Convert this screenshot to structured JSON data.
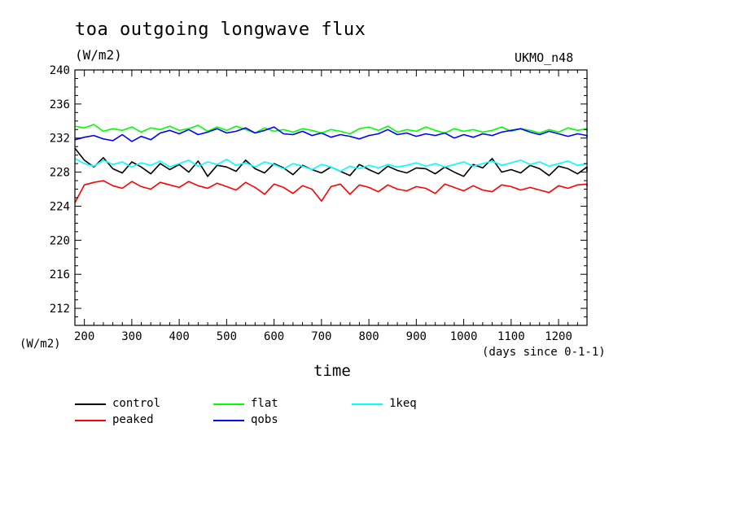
{
  "chart_data": {
    "type": "line",
    "title": "toa outgoing longwave flux",
    "units_label": "(W/m2)",
    "model_label": "UKMO_n48",
    "y_axis_units": "(W/m2)",
    "xlabel": "time",
    "x_units_note": "(days since 0-1-1)",
    "xlim": [
      180,
      1260
    ],
    "ylim": [
      210,
      240
    ],
    "x_ticks": [
      200,
      300,
      400,
      500,
      600,
      700,
      800,
      900,
      1000,
      1100,
      1200
    ],
    "y_ticks": [
      212,
      216,
      220,
      224,
      228,
      232,
      236,
      240
    ],
    "x_step": 20,
    "x_start": 180,
    "series": [
      {
        "name": "control",
        "color": "#000000",
        "values": [
          230.8,
          229.4,
          228.6,
          229.7,
          228.4,
          227.9,
          229.2,
          228.6,
          227.8,
          229.0,
          228.3,
          228.9,
          228.0,
          229.3,
          227.5,
          228.8,
          228.6,
          228.1,
          229.4,
          228.4,
          227.9,
          229.0,
          228.5,
          227.7,
          228.8,
          228.3,
          227.9,
          228.6,
          228.1,
          227.6,
          228.9,
          228.3,
          227.8,
          228.7,
          228.2,
          227.9,
          228.5,
          228.4,
          227.8,
          228.6,
          228.0,
          227.5,
          228.9,
          228.5,
          229.6,
          228.0,
          228.3,
          227.9,
          228.8,
          228.4,
          227.6,
          228.7,
          228.4,
          227.8,
          228.6,
          228.1
        ]
      },
      {
        "name": "peaked",
        "color": "#ff0000",
        "values": [
          224.4,
          226.5,
          226.8,
          227.0,
          226.4,
          226.1,
          226.9,
          226.3,
          226.0,
          226.8,
          226.5,
          226.2,
          226.9,
          226.4,
          226.1,
          226.7,
          226.3,
          225.9,
          226.8,
          226.2,
          225.4,
          226.6,
          226.2,
          225.5,
          226.4,
          226.0,
          224.6,
          226.3,
          226.6,
          225.4,
          226.5,
          226.2,
          225.7,
          226.5,
          226.0,
          225.8,
          226.3,
          226.1,
          225.5,
          226.6,
          226.2,
          225.8,
          226.4,
          225.9,
          225.7,
          226.5,
          226.3,
          225.9,
          226.2,
          225.9,
          225.6,
          226.4,
          226.1,
          226.5,
          226.6,
          226.3
        ]
      },
      {
        "name": "flat",
        "color": "#00ff00",
        "values": [
          233.4,
          233.2,
          233.6,
          232.8,
          233.1,
          232.9,
          233.3,
          232.7,
          233.2,
          233.0,
          233.4,
          232.9,
          233.1,
          233.5,
          232.8,
          233.3,
          232.9,
          233.4,
          233.0,
          232.6,
          233.2,
          232.8,
          233.0,
          232.7,
          233.1,
          232.9,
          232.6,
          233.0,
          232.8,
          232.5,
          233.1,
          233.3,
          232.9,
          233.4,
          232.7,
          233.0,
          232.8,
          233.3,
          232.9,
          232.6,
          233.1,
          232.8,
          233.0,
          232.7,
          232.9,
          233.3,
          232.8,
          233.1,
          232.9,
          232.6,
          233.0,
          232.7,
          233.2,
          232.9,
          233.1,
          232.7
        ]
      },
      {
        "name": "qobs",
        "color": "#0000ff",
        "values": [
          231.8,
          232.1,
          232.3,
          231.9,
          231.7,
          232.4,
          231.6,
          232.2,
          231.8,
          232.6,
          232.9,
          232.5,
          233.0,
          232.4,
          232.7,
          233.1,
          232.6,
          232.8,
          233.2,
          232.6,
          232.9,
          233.3,
          232.5,
          232.4,
          232.8,
          232.3,
          232.6,
          232.1,
          232.4,
          232.2,
          231.9,
          232.3,
          232.5,
          233.0,
          232.4,
          232.6,
          232.2,
          232.5,
          232.3,
          232.6,
          232.0,
          232.4,
          232.1,
          232.5,
          232.3,
          232.7,
          232.9,
          233.1,
          232.7,
          232.4,
          232.8,
          232.5,
          232.2,
          232.5,
          232.3,
          232.1
        ]
      },
      {
        "name": "1keq",
        "color": "#00ffff",
        "values": [
          229.6,
          229.0,
          228.7,
          229.4,
          228.9,
          229.2,
          228.6,
          229.1,
          228.8,
          229.3,
          228.6,
          229.0,
          229.4,
          228.7,
          229.2,
          228.9,
          229.5,
          228.8,
          229.1,
          228.6,
          229.2,
          228.9,
          228.4,
          229.0,
          228.7,
          228.3,
          228.9,
          228.6,
          228.1,
          228.7,
          228.4,
          228.8,
          228.5,
          228.9,
          228.6,
          228.8,
          229.1,
          228.7,
          229.0,
          228.6,
          228.9,
          229.2,
          228.7,
          229.0,
          229.3,
          228.8,
          229.1,
          229.4,
          228.9,
          229.2,
          228.7,
          229.0,
          229.3,
          228.8,
          229.0,
          229.1
        ]
      }
    ],
    "legend": [
      {
        "label": "control",
        "color": "#000000"
      },
      {
        "label": "peaked",
        "color": "#ff0000"
      },
      {
        "label": "flat",
        "color": "#00ff00"
      },
      {
        "label": "qobs",
        "color": "#0000ff"
      },
      {
        "label": "1keq",
        "color": "#00ffff"
      }
    ]
  }
}
